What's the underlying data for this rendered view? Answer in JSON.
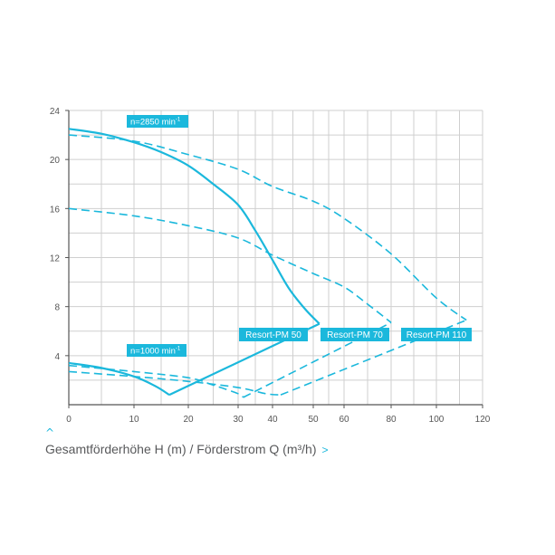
{
  "chart_data": {
    "type": "line",
    "x_ticks": [
      "0",
      "10",
      "20",
      "30",
      "40",
      "50",
      "60",
      "80",
      "100",
      "120"
    ],
    "y_ticks": [
      "4",
      "8",
      "12",
      "16",
      "20",
      "24"
    ],
    "ylim": [
      0,
      24
    ],
    "grid": true,
    "colors": {
      "curve": "#1bb8dc",
      "grid": "#cfcfcf",
      "axis": "#555555",
      "label_bg": "#1bb8dc"
    },
    "speed_labels": [
      {
        "text": "n=2850 min",
        "sup": "-1"
      },
      {
        "text": "n=1000 min",
        "sup": "-1"
      }
    ],
    "series": [
      {
        "name": "Resort-PM 50",
        "dash": "solid",
        "points": [
          [
            0,
            22.5
          ],
          [
            5,
            22.1
          ],
          [
            10,
            21.4
          ],
          [
            15,
            20.6
          ],
          [
            20,
            19.5
          ],
          [
            25,
            18.0
          ],
          [
            30,
            16.3
          ],
          [
            35,
            14.2
          ],
          [
            40,
            11.8
          ],
          [
            44,
            9.5
          ],
          [
            48,
            7.8
          ],
          [
            52,
            6.6
          ]
        ],
        "low_points": [
          [
            0,
            3.4
          ],
          [
            5,
            3.0
          ],
          [
            10,
            2.3
          ],
          [
            14,
            1.5
          ],
          [
            16.5,
            0.8
          ]
        ]
      },
      {
        "name": "Resort-PM 70",
        "dash": "long",
        "points": [
          [
            0,
            16.0
          ],
          [
            10,
            15.4
          ],
          [
            20,
            14.6
          ],
          [
            30,
            13.6
          ],
          [
            40,
            12.2
          ],
          [
            50,
            10.7
          ],
          [
            60,
            9.6
          ],
          [
            70,
            8.2
          ],
          [
            80,
            6.7
          ]
        ],
        "low_points": [
          [
            0,
            3.2
          ],
          [
            10,
            2.7
          ],
          [
            20,
            2.2
          ],
          [
            25,
            1.6
          ],
          [
            30,
            0.9
          ],
          [
            31.5,
            0.6
          ]
        ]
      },
      {
        "name": "Resort-PM 110",
        "dash": "long",
        "points": [
          [
            0,
            22.0
          ],
          [
            10,
            21.5
          ],
          [
            20,
            20.4
          ],
          [
            30,
            19.2
          ],
          [
            40,
            17.8
          ],
          [
            50,
            16.6
          ],
          [
            60,
            15.2
          ],
          [
            80,
            12.3
          ],
          [
            100,
            8.7
          ],
          [
            113,
            6.9
          ]
        ],
        "low_points": [
          [
            0,
            2.7
          ],
          [
            10,
            2.3
          ],
          [
            20,
            1.9
          ],
          [
            30,
            1.4
          ],
          [
            38,
            0.9
          ],
          [
            42,
            0.8
          ]
        ]
      }
    ],
    "caption": "Gesamtförderhöhe H (m) / Förderstrom Q (m³/h)"
  }
}
